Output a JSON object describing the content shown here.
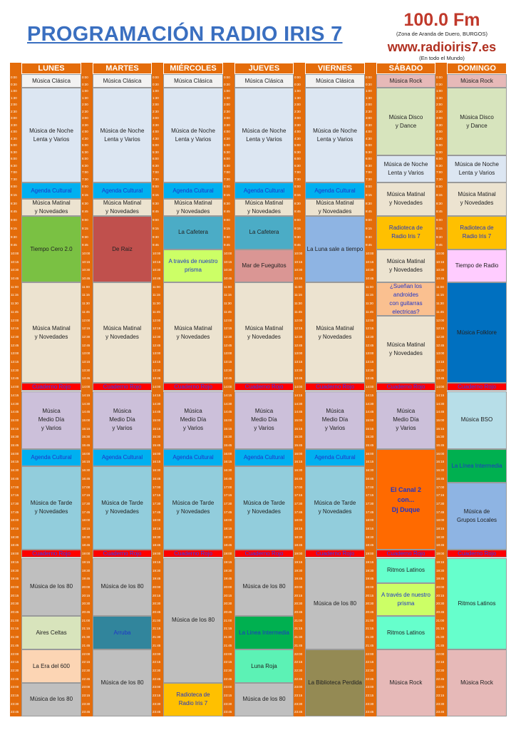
{
  "header": {
    "title": "PROGRAMACIÓN RADIO IRIS 7",
    "frequency": "100.0 Fm",
    "zone": "(Zona de Aranda de Duero, BURGOS)",
    "website": "www.radioiris7.es",
    "reach": "(En todo el Mundo)"
  },
  "schedule": {
    "times": [
      "0:00",
      "0:30",
      "1:00",
      "1:30",
      "2:00",
      "2:30",
      "3:00",
      "3:30",
      "4:00",
      "4:30",
      "5:00",
      "5:30",
      "6:00",
      "6:30",
      "7:00",
      "7:30",
      "8:00",
      "8:15",
      "8:30",
      "8:45",
      "9:00",
      "9:15",
      "9:30",
      "9:45",
      "10:00",
      "10:15",
      "10:30",
      "10:45",
      "11:00",
      "11:15",
      "11:30",
      "11:45",
      "12:00",
      "12:15",
      "12:30",
      "12:45",
      "13:00",
      "13:15",
      "13:30",
      "13:45",
      "14:00",
      "14:15",
      "14:30",
      "14:45",
      "15:00",
      "15:15",
      "15:30",
      "15:45",
      "16:00",
      "16:15",
      "16:30",
      "16:45",
      "17:00",
      "17:15",
      "17:30",
      "17:45",
      "18:00",
      "18:15",
      "18:30",
      "18:45",
      "19:00",
      "19:15",
      "19:30",
      "19:45",
      "20:00",
      "20:15",
      "20:30",
      "20:45",
      "21:00",
      "21:15",
      "21:30",
      "21:45",
      "22:00",
      "22:15",
      "22:30",
      "22:45",
      "23:00",
      "23:15",
      "23:30",
      "23:45"
    ],
    "days": [
      {
        "name": "LUNES",
        "programs": [
          "Música Clásica",
          "Música de Noche\nLenta y Varios",
          "Agenda Cultural",
          "Música Matinal\ny Novedades",
          "Tiempo Cero 2.0",
          "Música Matinal\ny Novedades",
          "Cuaderno Rojo",
          "Música\nMedio Día\ny Varios",
          "Agenda Cultural",
          "Música de Tarde\ny Novedades",
          "Cuaderno Rojo",
          "Música de los 80",
          "Aires Celtas",
          "La Era del 600",
          "Música de los 80"
        ]
      },
      {
        "name": "MARTES",
        "programs": [
          "Música Clásica",
          "Música de Noche\nLenta y Varios",
          "Agenda Cultural",
          "Música Matinal\ny Novedades",
          "De Raiz",
          "Música Matinal\ny Novedades",
          "Cuaderno Rojo",
          "Música\nMedio Día\ny Varios",
          "Agenda Cultural",
          "Música de Tarde\ny Novedades",
          "Cuaderno Rojo",
          "Música de los 80",
          "Arruba",
          "Música de los 80"
        ]
      },
      {
        "name": "MIÉRCOLES",
        "programs": [
          "Música Clásica",
          "Música de Noche\nLenta y Varios",
          "Agenda Cultural",
          "Música Matinal\ny Novedades",
          "La Cafetera",
          "A través de nuestro\nprisma",
          "Música Matinal\ny Novedades",
          "Cuaderno Rojo",
          "Música\nMedio Día\ny Varios",
          "Agenda Cultural",
          "Música de Tarde\ny Novedades",
          "Cuaderno Rojo",
          "Música de los 80",
          "Radioteca de\nRadio Iris 7"
        ]
      },
      {
        "name": "JUEVES",
        "programs": [
          "Música Clásica",
          "Música de Noche\nLenta y Varios",
          "Agenda Cultural",
          "Música Matinal\ny Novedades",
          "La Cafetera",
          "Mar de Fueguitos",
          "Música Matinal\ny Novedades",
          "Cuaderno Rojo",
          "Música\nMedio Día\ny Varios",
          "Agenda Cultural",
          "Música de Tarde\ny Novedades",
          "Cuaderno Rojo",
          "Música de los 80",
          "La Linea Intermedia",
          "Luna Roja",
          "Música de los 80"
        ]
      },
      {
        "name": "VIERNES",
        "programs": [
          "Música Clásica",
          "Música de Noche\nLenta y Varios",
          "Agenda Cultural",
          "Música Matinal\ny Novedades",
          "La Luna sale a tiempo",
          "Música Matinal\ny Novedades",
          "Cuaderno Rojo",
          "Música\nMedio Día\ny Varios",
          "Agenda Cultural",
          "Música de Tarde\ny Novedades",
          "Cuaderno Rojo",
          "Música de los 80",
          "La Biblioteca Perdida"
        ]
      },
      {
        "name": "SÁBADO",
        "programs": [
          "Música Rock",
          "Música Disco\ny Dance",
          "Música de Noche\nLenta y Varios",
          "Música Matinal\ny Novedades",
          "Radioteca de\nRadio Iris 7",
          "Música Matinal\ny Novedades",
          "¿Sueñan los androides\ncon guitarras\nelectricas?",
          "Música Matinal\ny Novedades",
          "Cuaderno Rojo",
          "Música\nMedio Día\ny Varios",
          "El Canal 2\ncon...\nDj Duque",
          "Cuaderno Rojo",
          "Ritmos Latinos",
          "A través de nuestro\nprisma",
          "Ritmos Latinos",
          "Música Rock"
        ]
      },
      {
        "name": "DOMINGO",
        "programs": [
          "Música Rock",
          "Música Disco\ny Dance",
          "Música de Noche\nLenta y Varios",
          "Música Matinal\ny Novedades",
          "Radioteca de\nRadio Iris 7",
          "Tiempo de Radio",
          "Música Folklore",
          "Cuaderno Rojo",
          "Música BSO",
          "La Línea Intermedia",
          "Música de\nGrupos Locales",
          "Cuaderno Rojo",
          "Ritmos Latinos",
          "Música Rock"
        ]
      }
    ]
  }
}
